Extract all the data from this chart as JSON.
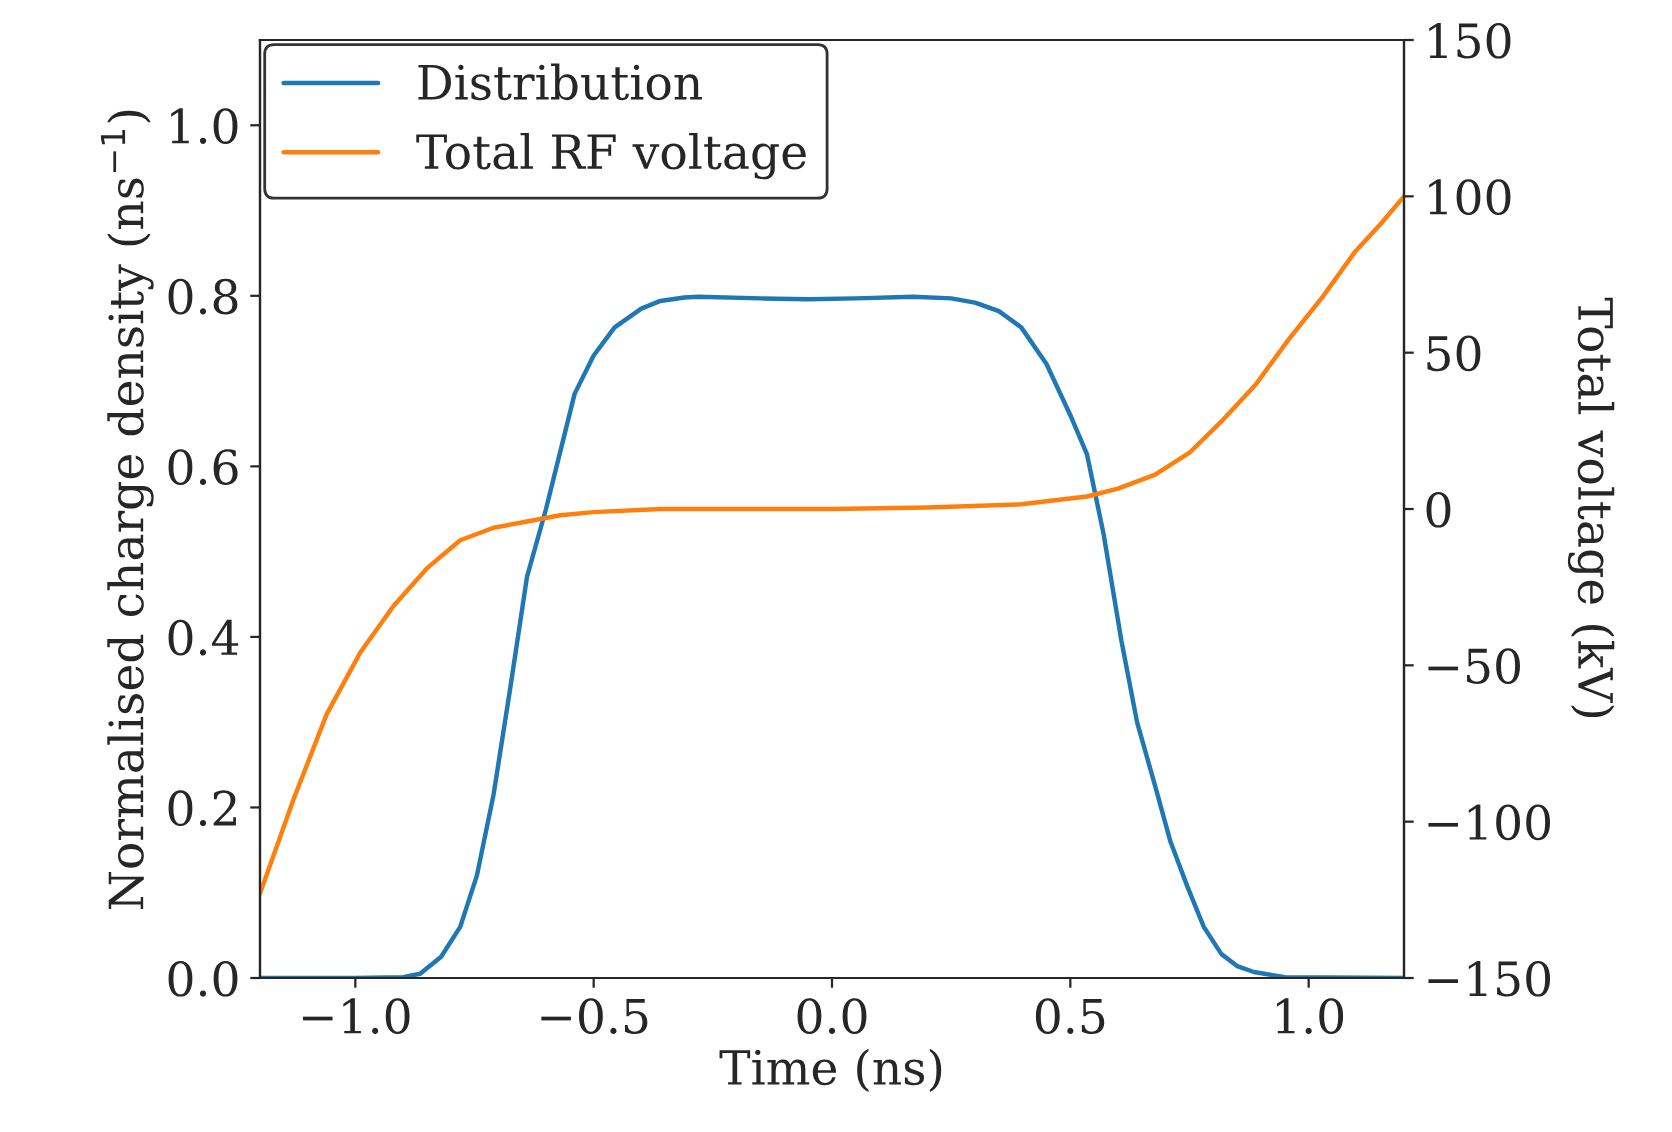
{
  "chart_data": {
    "type": "line",
    "xlabel": "Time (ns)",
    "ylabel": "Normalised charge density (ns$^{−1}$)",
    "y2label": "Total voltage (kV)",
    "xlim": [
      -1.2,
      1.2
    ],
    "xticks": [
      {
        "value": -1.0,
        "label": "−1.0"
      },
      {
        "value": -0.5,
        "label": "−0.5"
      },
      {
        "value": 0.0,
        "label": "0.0"
      },
      {
        "value": 0.5,
        "label": "0.5"
      },
      {
        "value": 1.0,
        "label": "1.0"
      }
    ],
    "ylim": [
      0,
      1.1
    ],
    "yticks": [
      {
        "value": 0,
        "label": "0.0"
      },
      {
        "value": 0.2,
        "label": "0.2"
      },
      {
        "value": 0.4,
        "label": "0.4"
      },
      {
        "value": 0.6,
        "label": "0.6"
      },
      {
        "value": 0.8,
        "label": "0.8"
      },
      {
        "value": 1.0,
        "label": "1.0"
      }
    ],
    "y2lim": [
      -150,
      150
    ],
    "y2ticks": [
      {
        "value": -150,
        "label": "−150"
      },
      {
        "value": -100,
        "label": "−100"
      },
      {
        "value": -50,
        "label": "−50"
      },
      {
        "value": 0,
        "label": "0"
      },
      {
        "value": 50,
        "label": "50"
      },
      {
        "value": 100,
        "label": "100"
      },
      {
        "value": 150,
        "label": "150"
      }
    ],
    "legend": "top left",
    "grid": false,
    "series": [
      {
        "name": "Distribution",
        "color": "#1f77b4",
        "x": [
          -1.2,
          -1.0,
          -0.9,
          -0.864,
          -0.82,
          -0.78,
          -0.745,
          -0.71,
          -0.675,
          -0.64,
          -0.6,
          -0.54,
          -0.5,
          -0.456,
          -0.4,
          -0.36,
          -0.31,
          -0.28,
          -0.15,
          -0.05,
          0.05,
          0.17,
          0.25,
          0.3,
          0.35,
          0.397,
          0.45,
          0.5,
          0.535,
          0.57,
          0.607,
          0.64,
          0.678,
          0.71,
          0.745,
          0.78,
          0.817,
          0.85,
          0.885,
          0.95,
          1.2
        ],
        "values": [
          0,
          0,
          0.001,
          0.005,
          0.025,
          0.06,
          0.12,
          0.215,
          0.34,
          0.47,
          0.55,
          0.685,
          0.73,
          0.763,
          0.785,
          0.794,
          0.798,
          0.799,
          0.797,
          0.796,
          0.797,
          0.799,
          0.797,
          0.792,
          0.782,
          0.763,
          0.72,
          0.66,
          0.614,
          0.52,
          0.396,
          0.3,
          0.225,
          0.16,
          0.108,
          0.06,
          0.028,
          0.014,
          0.007,
          0.001,
          0
        ]
      },
      {
        "name": "Total RF voltage",
        "color": "#ff7f0e",
        "axis": "y2",
        "x": [
          -1.2,
          -1.13,
          -1.06,
          -0.99,
          -0.92,
          -0.85,
          -0.78,
          -0.71,
          -0.64,
          -0.57,
          -0.5,
          -0.36,
          0.0,
          0.2,
          0.397,
          0.535,
          0.6,
          0.678,
          0.75,
          0.817,
          0.89,
          0.957,
          1.03,
          1.096,
          1.15,
          1.2
        ],
        "values": [
          -123,
          -93,
          -65.6,
          -46,
          -31,
          -19,
          -10,
          -6,
          -4,
          -2,
          -1,
          0,
          0,
          0.5,
          1.5,
          4,
          6.5,
          11,
          18,
          28,
          40,
          54,
          68,
          82,
          91,
          100
        ]
      }
    ]
  }
}
